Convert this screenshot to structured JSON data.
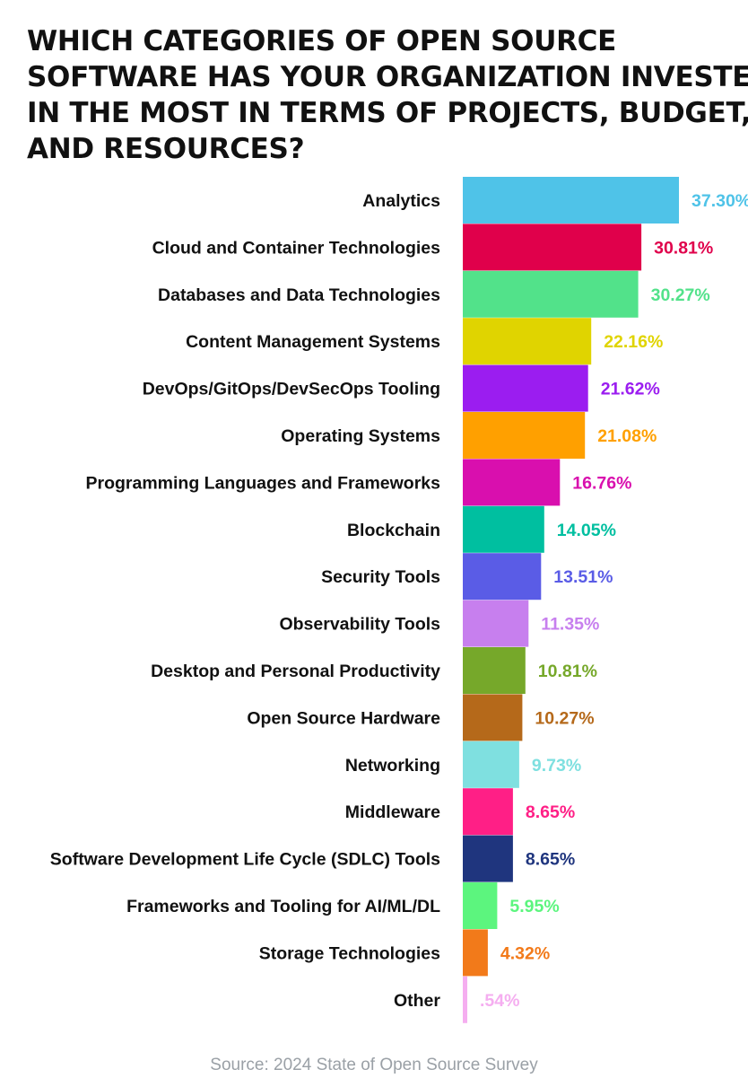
{
  "chart_data": {
    "type": "bar",
    "orientation": "horizontal",
    "title_lines": [
      "WHICH CATEGORIES OF OPEN SOURCE",
      "SOFTWARE HAS YOUR ORGANIZATION INVESTED",
      "IN THE MOST IN TERMS OF PROJECTS, BUDGET,",
      "AND RESOURCES?"
    ],
    "categories": [
      "Analytics",
      "Cloud and Container Technologies",
      "Databases and Data Technologies",
      "Content Management Systems",
      "DevOps/GitOps/DevSecOps Tooling",
      "Operating Systems",
      "Programming Languages and Frameworks",
      "Blockchain",
      "Security Tools",
      "Observability Tools",
      "Desktop and Personal Productivity",
      "Open Source Hardware",
      "Networking",
      "Middleware",
      "Software Development Life Cycle (SDLC) Tools",
      "Frameworks and Tooling for AI/ML/DL",
      "Storage Technologies",
      "Other"
    ],
    "values": [
      37.3,
      30.81,
      30.27,
      22.16,
      21.62,
      21.08,
      16.76,
      14.05,
      13.51,
      11.35,
      10.81,
      10.27,
      9.73,
      8.65,
      8.65,
      5.95,
      4.32,
      0.54
    ],
    "value_labels": [
      "37.30%",
      "30.81%",
      "30.27%",
      "22.16%",
      "21.62%",
      "21.08%",
      "16.76%",
      "14.05%",
      "13.51%",
      "11.35%",
      "10.81%",
      "10.27%",
      "9.73%",
      "8.65%",
      "8.65%",
      "5.95%",
      "4.32%",
      ".54%"
    ],
    "colors": [
      "#4fc3e8",
      "#e0004b",
      "#52e28a",
      "#e0d400",
      "#9b1df0",
      "#ffa000",
      "#d90fae",
      "#00bfa0",
      "#5a5ce6",
      "#c77fee",
      "#76a82a",
      "#b5691a",
      "#7fe0e0",
      "#ff1f86",
      "#1f357e",
      "#5cf57e",
      "#f27a1a",
      "#f5aef0"
    ],
    "xlim": [
      0,
      37.3
    ],
    "xlabel": "",
    "ylabel": "",
    "grid": false,
    "legend": "none"
  },
  "source": "Source: 2024 State of Open Source Survey"
}
